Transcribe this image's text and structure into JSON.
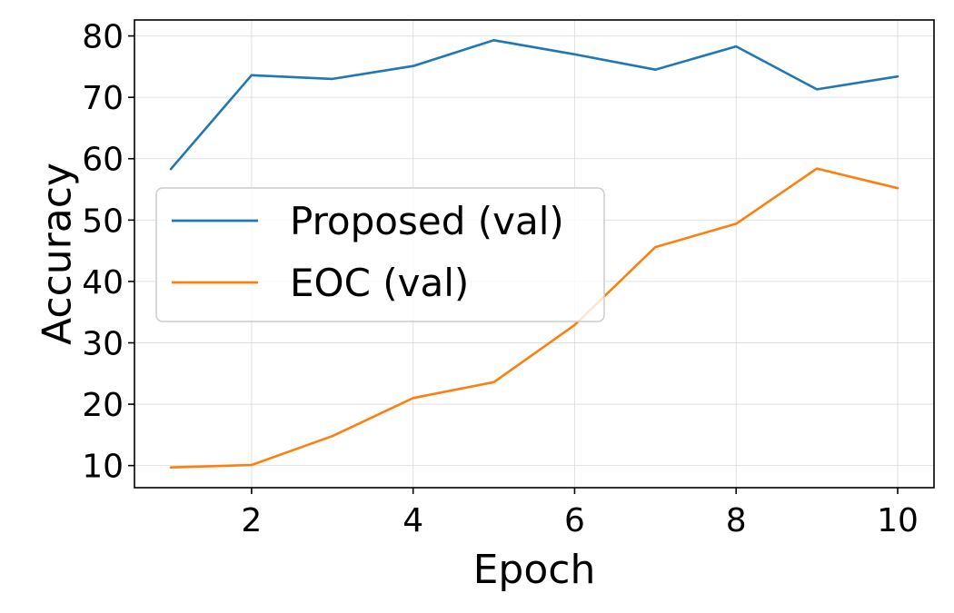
{
  "chart_data": {
    "type": "line",
    "title": "",
    "xlabel": "Epoch",
    "ylabel": "Accuracy",
    "xlim": [
      0.55,
      10.45
    ],
    "ylim": [
      6.4,
      82.6
    ],
    "xticks": [
      2,
      4,
      6,
      8,
      10
    ],
    "yticks": [
      10,
      20,
      30,
      40,
      50,
      60,
      70,
      80
    ],
    "grid": true,
    "legend_position": "center-left",
    "x": [
      1,
      2,
      3,
      4,
      5,
      6,
      7,
      8,
      9,
      10
    ],
    "series": [
      {
        "name": "Proposed (val)",
        "color": "#1f77b4",
        "values": [
          58.3,
          73.6,
          73.0,
          75.1,
          79.3,
          77.0,
          74.5,
          78.3,
          71.3,
          73.4
        ]
      },
      {
        "name": "EOC (val)",
        "color": "#ff7f0e",
        "values": [
          9.7,
          10.1,
          14.8,
          21.0,
          23.6,
          32.9,
          45.6,
          49.4,
          58.4,
          55.2
        ]
      }
    ]
  }
}
